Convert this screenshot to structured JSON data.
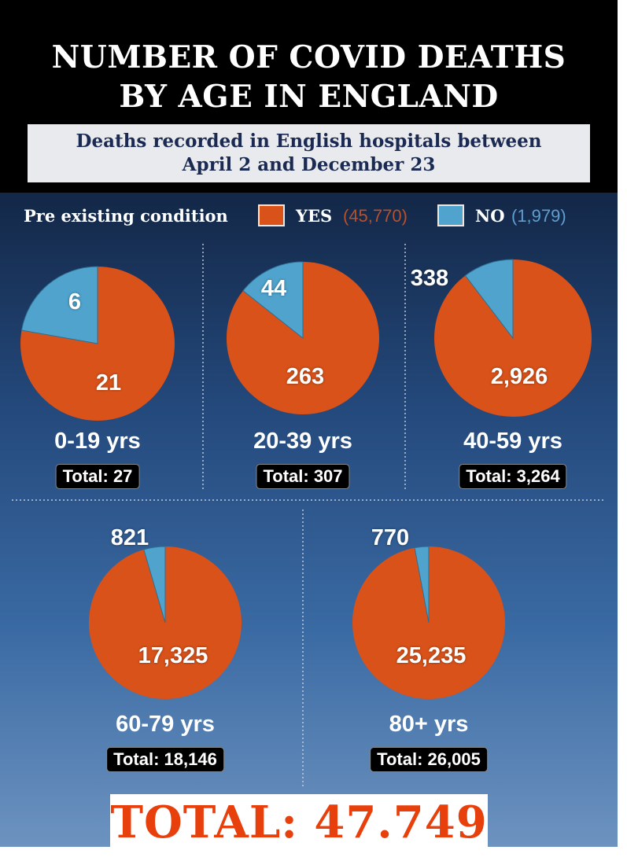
{
  "header": {
    "title_line1": "NUMBER OF COVID DEATHS",
    "title_line2": "BY AGE IN ENGLAND",
    "subtitle_line1": "Deaths recorded in English hospitals between",
    "subtitle_line2": "April 2 and December 23"
  },
  "legend": {
    "label": "Pre existing condition",
    "yes_label": "YES",
    "yes_count": "(45,770)",
    "no_label": "NO",
    "no_count": "(1,979)"
  },
  "colors": {
    "yes": "#d9521a",
    "no": "#4fa3cc",
    "yes_text": "#b8502a",
    "no_text": "#5f9fd0",
    "total_text": "#e8400c"
  },
  "chart_data": {
    "type": "pie",
    "title": "Number of Covid deaths by age in England",
    "series_names": [
      "YES",
      "NO"
    ],
    "groups": [
      {
        "age": "0-19 yrs",
        "yes": 21,
        "no": 6,
        "yes_label": "21",
        "no_label": "6",
        "total": "Total: 27"
      },
      {
        "age": "20-39 yrs",
        "yes": 263,
        "no": 44,
        "yes_label": "263",
        "no_label": "44",
        "total": "Total: 307"
      },
      {
        "age": "40-59 yrs",
        "yes": 2926,
        "no": 338,
        "yes_label": "2,926",
        "no_label": "338",
        "total": "Total: 3,264"
      },
      {
        "age": "60-79 yrs",
        "yes": 17325,
        "no": 821,
        "yes_label": "17,325",
        "no_label": "821",
        "total": "Total: 18,146"
      },
      {
        "age": "80+ yrs",
        "yes": 25235,
        "no": 770,
        "yes_label": "25,235",
        "no_label": "770",
        "total": "Total: 26,005"
      }
    ]
  },
  "footer": {
    "total": "TOTAL: 47.749"
  }
}
